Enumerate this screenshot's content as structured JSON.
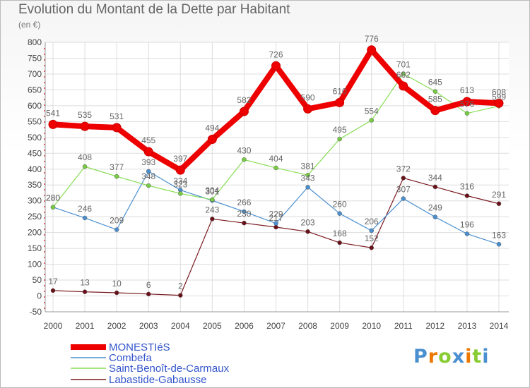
{
  "chart_data": {
    "type": "line",
    "title": "Evolution du Montant de la Dette par Habitant",
    "subtitle": "(en €)",
    "x": [
      "2000",
      "2001",
      "2002",
      "2003",
      "2004",
      "2005",
      "2006",
      "2007",
      "2008",
      "2009",
      "2010",
      "2011",
      "2012",
      "2013",
      "2014"
    ],
    "ylim": [
      -50,
      800
    ],
    "yticks": [
      -50,
      0,
      50,
      100,
      150,
      200,
      250,
      300,
      350,
      400,
      450,
      500,
      550,
      600,
      650,
      700,
      750,
      800
    ],
    "grid": true,
    "legend": "bottom-left",
    "series": [
      {
        "name": "MONESTIéS",
        "color": "#ee0000",
        "values": [
          541,
          535,
          531,
          455,
          397,
          494,
          582,
          726,
          590,
          610,
          776,
          662,
          585,
          613,
          608
        ]
      },
      {
        "name": "Combefa",
        "color": "#4a8fd0",
        "values": [
          280,
          246,
          209,
          393,
          334,
          301,
          266,
          229,
          343,
          260,
          206,
          307,
          249,
          196,
          163
        ]
      },
      {
        "name": "Saint-Benoît-de-Carmaux",
        "color": "#88dd55",
        "values": [
          280,
          408,
          377,
          348,
          323,
          304,
          430,
          404,
          381,
          495,
          554,
          701,
          645,
          576,
          599
        ]
      },
      {
        "name": "Labastide-Gabausse",
        "color": "#7a1a20",
        "values": [
          17,
          13,
          10,
          6,
          2,
          243,
          230,
          217,
          203,
          168,
          152,
          372,
          344,
          316,
          291
        ]
      }
    ]
  },
  "logo_text": "Proxiti",
  "logo_colors": [
    "#4a8fd0",
    "#ee7700",
    "#88cc33",
    "#4a8fd0",
    "#ee7700",
    "#88cc33",
    "#4a8fd0"
  ]
}
